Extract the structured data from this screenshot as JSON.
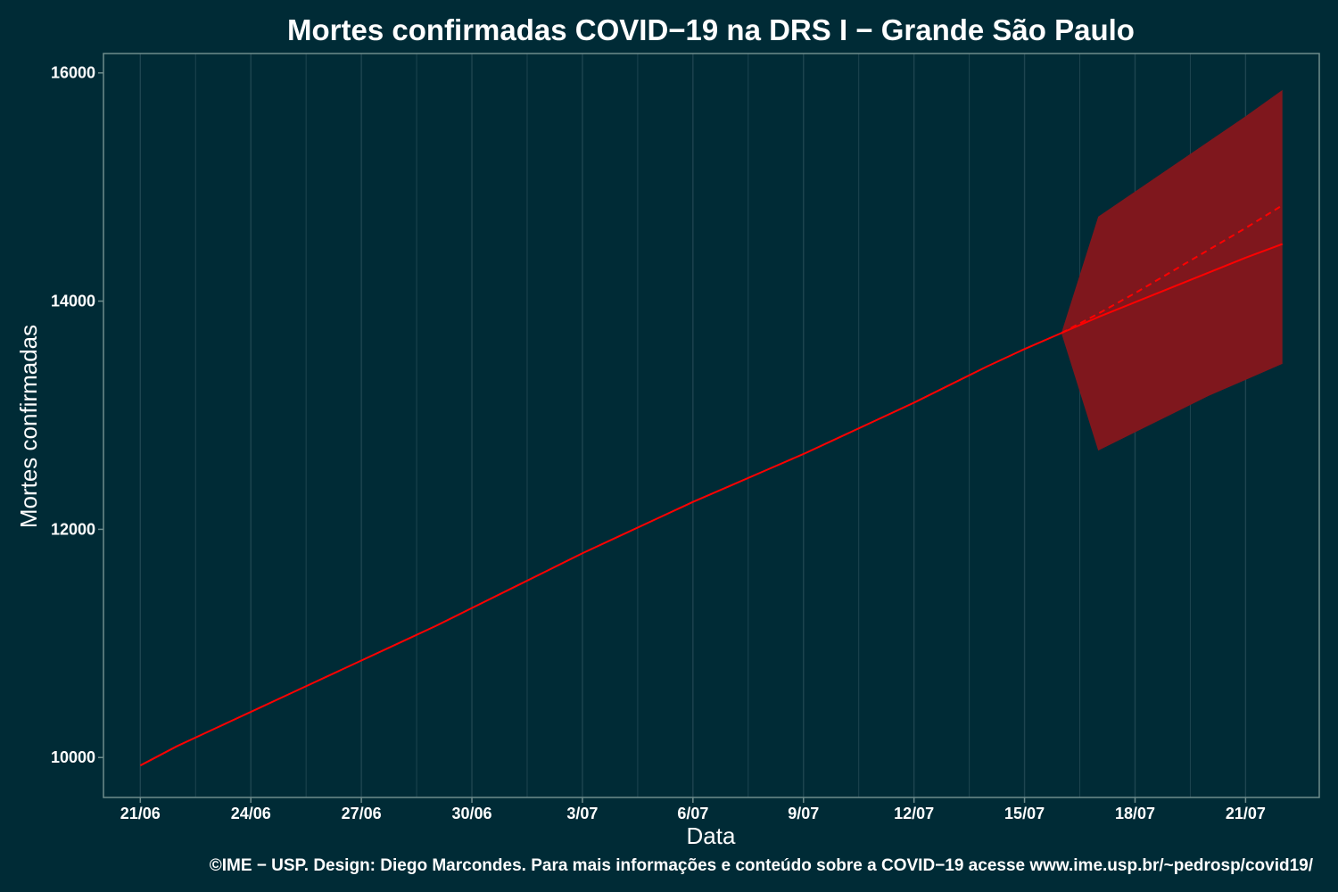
{
  "chart_data": {
    "type": "line",
    "title": "Mortes confirmadas COVID−19 na DRS I − Grande São Paulo",
    "xlabel": "Data",
    "ylabel": "Mortes confirmadas",
    "caption": "©IME − USP. Design: Diego Marcondes. Para mais informações e conteúdo sobre a COVID−19 acesse www.ime.usp.br/~pedrosp/covid19/",
    "x": [
      "21/06",
      "22/06",
      "23/06",
      "24/06",
      "25/06",
      "26/06",
      "27/06",
      "28/06",
      "29/06",
      "30/06",
      "1/07",
      "2/07",
      "3/07",
      "4/07",
      "5/07",
      "6/07",
      "7/07",
      "8/07",
      "9/07",
      "10/07",
      "11/07",
      "12/07",
      "13/07",
      "14/07",
      "15/07",
      "16/07",
      "17/07",
      "18/07",
      "19/07",
      "20/07",
      "21/07",
      "22/07"
    ],
    "x_ticks": [
      "21/06",
      "24/06",
      "27/06",
      "30/06",
      "3/07",
      "6/07",
      "9/07",
      "12/07",
      "15/07",
      "18/07",
      "21/07"
    ],
    "xlim": [
      "20/06",
      "23/07"
    ],
    "y_ticks": [
      10000,
      12000,
      14000,
      16000
    ],
    "ylim": [
      9650,
      16170
    ],
    "grid": true,
    "series": [
      {
        "kind": "observed",
        "style": "solid",
        "x": [
          "21/06",
          "22/06",
          "23/06",
          "24/06",
          "25/06",
          "26/06",
          "27/06",
          "28/06",
          "29/06",
          "30/06",
          "1/07",
          "2/07",
          "3/07",
          "4/07",
          "5/07",
          "6/07",
          "7/07",
          "8/07",
          "9/07",
          "10/07",
          "11/07",
          "12/07",
          "13/07",
          "14/07",
          "15/07",
          "16/07"
        ],
        "values": [
          9930,
          10100,
          10250,
          10400,
          10550,
          10700,
          10850,
          11000,
          11150,
          11310,
          11470,
          11630,
          11790,
          11940,
          12090,
          12240,
          12380,
          12520,
          12660,
          12810,
          12960,
          13110,
          13270,
          13430,
          13580,
          13720
        ]
      },
      {
        "kind": "forecast",
        "style": "solid",
        "x": [
          "16/07",
          "17/07",
          "18/07",
          "19/07",
          "20/07",
          "21/07",
          "22/07"
        ],
        "values": [
          13720,
          13860,
          13990,
          14120,
          14250,
          14380,
          14500
        ]
      },
      {
        "kind": "forecast",
        "style": "dashed",
        "x": [
          "16/07",
          "17/07",
          "18/07",
          "19/07",
          "20/07",
          "21/07",
          "22/07"
        ],
        "values": [
          13720,
          13890,
          14070,
          14260,
          14450,
          14640,
          14840
        ]
      }
    ],
    "band": {
      "x": [
        "16/07",
        "17/07",
        "18/07",
        "19/07",
        "20/07",
        "21/07",
        "22/07"
      ],
      "upper": [
        13720,
        14740,
        14960,
        15180,
        15400,
        15620,
        15850
      ],
      "lower": [
        13720,
        12690,
        12850,
        13010,
        13170,
        13310,
        13450
      ]
    },
    "colors": {
      "background": "#002b36",
      "grid": "#1e4550",
      "border": "#6f8c8c",
      "line": "#ff0000",
      "band": "#7f171d",
      "text": "#ffffff"
    }
  }
}
